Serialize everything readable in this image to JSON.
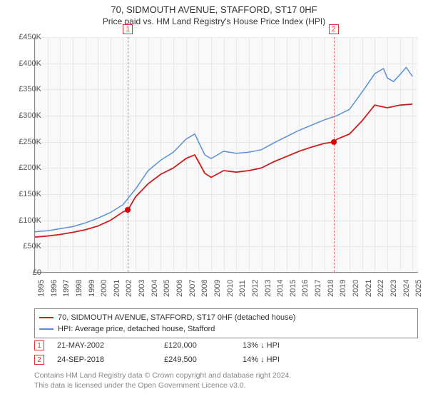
{
  "title": "70, SIDMOUTH AVENUE, STAFFORD, ST17 0HF",
  "subtitle": "Price paid vs. HM Land Registry's House Price Index (HPI)",
  "chart": {
    "type": "line",
    "background_color": "#f9f9f9",
    "grid_color": "#e8e8e8",
    "axis_color": "#888888",
    "label_fontsize": 11,
    "label_color": "#555555",
    "x_years": [
      1995,
      1996,
      1997,
      1998,
      1999,
      2000,
      2001,
      2002,
      2003,
      2004,
      2005,
      2006,
      2007,
      2008,
      2009,
      2010,
      2011,
      2012,
      2013,
      2014,
      2015,
      2016,
      2017,
      2018,
      2019,
      2020,
      2021,
      2022,
      2023,
      2024,
      2025
    ],
    "xlim": [
      1995,
      2025.5
    ],
    "y_ticks": [
      0,
      50000,
      100000,
      150000,
      200000,
      250000,
      300000,
      350000,
      400000,
      450000
    ],
    "y_tick_labels": [
      "£0",
      "£50K",
      "£100K",
      "£150K",
      "£200K",
      "£250K",
      "£300K",
      "£350K",
      "£400K",
      "£450K"
    ],
    "ylim": [
      0,
      450000
    ],
    "series": [
      {
        "name": "70, SIDMOUTH AVENUE, STAFFORD, ST17 0HF (detached house)",
        "color": "#d01c1c",
        "width": 1.8,
        "data": [
          [
            1995,
            68000
          ],
          [
            1996,
            70000
          ],
          [
            1997,
            73000
          ],
          [
            1998,
            77000
          ],
          [
            1999,
            82000
          ],
          [
            2000,
            89000
          ],
          [
            2001,
            100000
          ],
          [
            2002,
            116000
          ],
          [
            2002.4,
            120000
          ],
          [
            2003,
            145000
          ],
          [
            2004,
            170000
          ],
          [
            2005,
            188000
          ],
          [
            2006,
            200000
          ],
          [
            2007,
            218000
          ],
          [
            2007.7,
            225000
          ],
          [
            2008,
            212000
          ],
          [
            2008.5,
            190000
          ],
          [
            2009,
            182000
          ],
          [
            2010,
            195000
          ],
          [
            2011,
            192000
          ],
          [
            2012,
            195000
          ],
          [
            2013,
            200000
          ],
          [
            2014,
            212000
          ],
          [
            2015,
            222000
          ],
          [
            2016,
            232000
          ],
          [
            2017,
            240000
          ],
          [
            2018,
            247000
          ],
          [
            2018.73,
            249500
          ],
          [
            2019,
            255000
          ],
          [
            2020,
            265000
          ],
          [
            2021,
            290000
          ],
          [
            2022,
            320000
          ],
          [
            2023,
            315000
          ],
          [
            2024,
            320000
          ],
          [
            2025,
            322000
          ]
        ]
      },
      {
        "name": "HPI: Average price, detached house, Stafford",
        "color": "#5a8fd6",
        "width": 1.5,
        "data": [
          [
            1995,
            78000
          ],
          [
            1996,
            80000
          ],
          [
            1997,
            84000
          ],
          [
            1998,
            88000
          ],
          [
            1999,
            95000
          ],
          [
            2000,
            104000
          ],
          [
            2001,
            115000
          ],
          [
            2002,
            130000
          ],
          [
            2003,
            160000
          ],
          [
            2004,
            195000
          ],
          [
            2005,
            215000
          ],
          [
            2006,
            230000
          ],
          [
            2007,
            255000
          ],
          [
            2007.7,
            265000
          ],
          [
            2008,
            250000
          ],
          [
            2008.5,
            225000
          ],
          [
            2009,
            218000
          ],
          [
            2010,
            232000
          ],
          [
            2011,
            228000
          ],
          [
            2012,
            230000
          ],
          [
            2013,
            235000
          ],
          [
            2014,
            248000
          ],
          [
            2015,
            260000
          ],
          [
            2016,
            272000
          ],
          [
            2017,
            282000
          ],
          [
            2018,
            292000
          ],
          [
            2019,
            300000
          ],
          [
            2020,
            312000
          ],
          [
            2021,
            345000
          ],
          [
            2022,
            380000
          ],
          [
            2022.7,
            390000
          ],
          [
            2023,
            372000
          ],
          [
            2023.5,
            365000
          ],
          [
            2024,
            378000
          ],
          [
            2024.5,
            392000
          ],
          [
            2025,
            375000
          ]
        ]
      }
    ],
    "sale_markers": [
      {
        "n": "1",
        "x_year": 2002.39,
        "y_value": 120000
      },
      {
        "n": "2",
        "x_year": 2018.73,
        "y_value": 249500
      }
    ]
  },
  "legend": {
    "border_color": "#888888",
    "items": [
      {
        "color": "#d01c1c",
        "label": "70, SIDMOUTH AVENUE, STAFFORD, ST17 0HF (detached house)"
      },
      {
        "color": "#5a8fd6",
        "label": "HPI: Average price, detached house, Stafford"
      }
    ]
  },
  "sales": [
    {
      "n": "1",
      "date": "21-MAY-2002",
      "price": "£120,000",
      "diff": "13% ↓ HPI"
    },
    {
      "n": "2",
      "date": "24-SEP-2018",
      "price": "£249,500",
      "diff": "14% ↓ HPI"
    }
  ],
  "footer": {
    "line1": "Contains HM Land Registry data © Crown copyright and database right 2024.",
    "line2": "This data is licensed under the Open Government Licence v3.0."
  }
}
